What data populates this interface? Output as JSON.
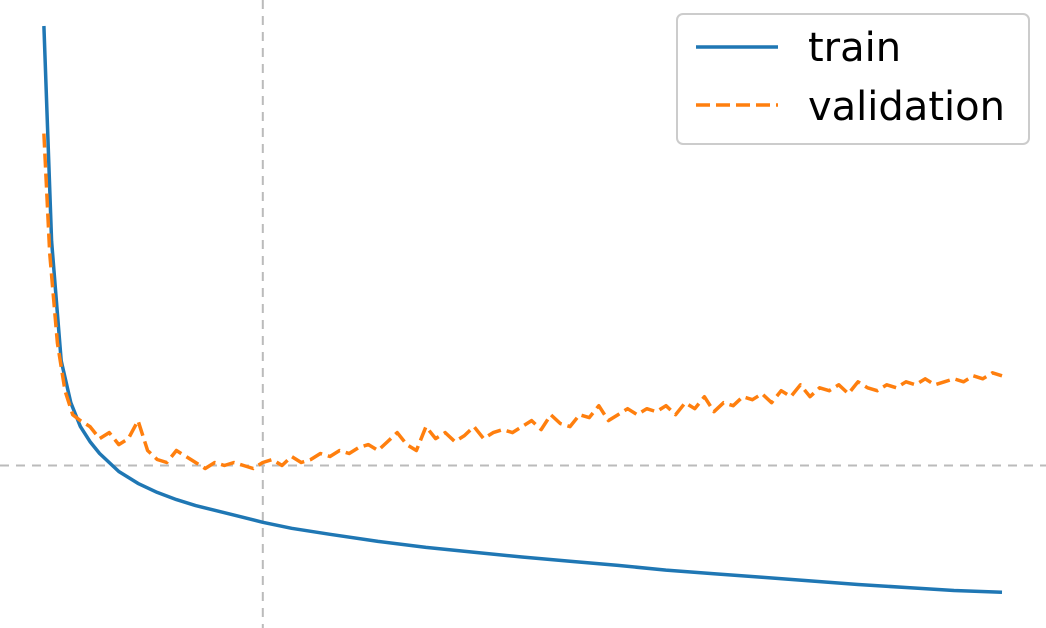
{
  "chart_data": {
    "type": "line",
    "title": "",
    "xlabel": "",
    "ylabel": "",
    "xlim": [
      0,
      500
    ],
    "ylim": [
      0,
      1.0
    ],
    "grid": false,
    "legend_position": "top-right",
    "reference_lines": {
      "vertical_x": 115,
      "horizontal_y": 0.245
    },
    "series": [
      {
        "name": "train",
        "style": "solid",
        "color": "#1f77b4",
        "points": [
          [
            1,
            0.98
          ],
          [
            5,
            0.62
          ],
          [
            10,
            0.42
          ],
          [
            15,
            0.35
          ],
          [
            20,
            0.31
          ],
          [
            25,
            0.285
          ],
          [
            30,
            0.265
          ],
          [
            40,
            0.235
          ],
          [
            50,
            0.215
          ],
          [
            60,
            0.2
          ],
          [
            70,
            0.188
          ],
          [
            80,
            0.178
          ],
          [
            90,
            0.17
          ],
          [
            100,
            0.162
          ],
          [
            115,
            0.15
          ],
          [
            130,
            0.14
          ],
          [
            150,
            0.13
          ],
          [
            175,
            0.118
          ],
          [
            200,
            0.108
          ],
          [
            225,
            0.1
          ],
          [
            250,
            0.092
          ],
          [
            275,
            0.085
          ],
          [
            300,
            0.078
          ],
          [
            325,
            0.07
          ],
          [
            350,
            0.064
          ],
          [
            375,
            0.058
          ],
          [
            400,
            0.052
          ],
          [
            425,
            0.046
          ],
          [
            450,
            0.041
          ],
          [
            475,
            0.036
          ],
          [
            500,
            0.033
          ]
        ]
      },
      {
        "name": "validation",
        "style": "dashed",
        "color": "#ff7f0e",
        "points": [
          [
            1,
            0.8
          ],
          [
            4,
            0.6
          ],
          [
            8,
            0.45
          ],
          [
            12,
            0.37
          ],
          [
            16,
            0.33
          ],
          [
            20,
            0.32
          ],
          [
            25,
            0.31
          ],
          [
            30,
            0.29
          ],
          [
            35,
            0.3
          ],
          [
            40,
            0.28
          ],
          [
            45,
            0.29
          ],
          [
            50,
            0.32
          ],
          [
            55,
            0.27
          ],
          [
            60,
            0.255
          ],
          [
            65,
            0.25
          ],
          [
            70,
            0.27
          ],
          [
            75,
            0.26
          ],
          [
            80,
            0.25
          ],
          [
            85,
            0.24
          ],
          [
            90,
            0.25
          ],
          [
            95,
            0.245
          ],
          [
            100,
            0.25
          ],
          [
            105,
            0.245
          ],
          [
            110,
            0.24
          ],
          [
            115,
            0.25
          ],
          [
            120,
            0.255
          ],
          [
            125,
            0.245
          ],
          [
            130,
            0.26
          ],
          [
            135,
            0.25
          ],
          [
            140,
            0.255
          ],
          [
            145,
            0.265
          ],
          [
            150,
            0.26
          ],
          [
            155,
            0.27
          ],
          [
            160,
            0.265
          ],
          [
            165,
            0.275
          ],
          [
            170,
            0.28
          ],
          [
            175,
            0.27
          ],
          [
            180,
            0.285
          ],
          [
            185,
            0.3
          ],
          [
            190,
            0.28
          ],
          [
            195,
            0.27
          ],
          [
            200,
            0.31
          ],
          [
            205,
            0.29
          ],
          [
            210,
            0.3
          ],
          [
            215,
            0.285
          ],
          [
            220,
            0.295
          ],
          [
            225,
            0.31
          ],
          [
            230,
            0.29
          ],
          [
            235,
            0.3
          ],
          [
            240,
            0.305
          ],
          [
            245,
            0.3
          ],
          [
            250,
            0.31
          ],
          [
            255,
            0.32
          ],
          [
            260,
            0.305
          ],
          [
            265,
            0.33
          ],
          [
            270,
            0.315
          ],
          [
            275,
            0.31
          ],
          [
            280,
            0.33
          ],
          [
            285,
            0.325
          ],
          [
            290,
            0.345
          ],
          [
            295,
            0.32
          ],
          [
            300,
            0.33
          ],
          [
            305,
            0.34
          ],
          [
            310,
            0.33
          ],
          [
            315,
            0.34
          ],
          [
            320,
            0.335
          ],
          [
            325,
            0.345
          ],
          [
            330,
            0.33
          ],
          [
            335,
            0.35
          ],
          [
            340,
            0.34
          ],
          [
            345,
            0.36
          ],
          [
            350,
            0.335
          ],
          [
            355,
            0.35
          ],
          [
            360,
            0.345
          ],
          [
            365,
            0.36
          ],
          [
            370,
            0.355
          ],
          [
            375,
            0.365
          ],
          [
            380,
            0.35
          ],
          [
            385,
            0.37
          ],
          [
            390,
            0.36
          ],
          [
            395,
            0.38
          ],
          [
            400,
            0.36
          ],
          [
            405,
            0.375
          ],
          [
            410,
            0.37
          ],
          [
            415,
            0.38
          ],
          [
            420,
            0.365
          ],
          [
            425,
            0.385
          ],
          [
            430,
            0.375
          ],
          [
            435,
            0.37
          ],
          [
            440,
            0.38
          ],
          [
            445,
            0.375
          ],
          [
            450,
            0.385
          ],
          [
            455,
            0.38
          ],
          [
            460,
            0.39
          ],
          [
            465,
            0.38
          ],
          [
            470,
            0.385
          ],
          [
            475,
            0.39
          ],
          [
            480,
            0.385
          ],
          [
            485,
            0.395
          ],
          [
            490,
            0.39
          ],
          [
            495,
            0.4
          ],
          [
            500,
            0.395
          ]
        ]
      }
    ]
  },
  "colors": {
    "train": "#1f77b4",
    "validation": "#ff7f0e",
    "reference_line": "#bbbbbb",
    "legend_border": "#cccccc"
  }
}
